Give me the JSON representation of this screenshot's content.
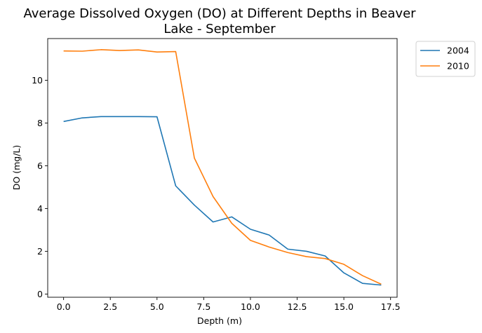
{
  "chart_data": {
    "type": "line",
    "title_line1": "Average Dissolved Oxygen (DO) at Different Depths in Beaver",
    "title_line2": "Lake - September",
    "xlabel": "Depth (m)",
    "ylabel": "DO (mg/L)",
    "xlim": [
      -0.85,
      17.85
    ],
    "ylim": [
      -0.15,
      11.95
    ],
    "xticks": [
      0.0,
      2.5,
      5.0,
      7.5,
      10.0,
      12.5,
      15.0,
      17.5
    ],
    "xtick_labels": [
      "0.0",
      "2.5",
      "5.0",
      "7.5",
      "10.0",
      "12.5",
      "15.0",
      "17.5"
    ],
    "yticks": [
      0,
      2,
      4,
      6,
      8,
      10
    ],
    "ytick_labels": [
      "0",
      "2",
      "4",
      "6",
      "8",
      "10"
    ],
    "grid": false,
    "legend_position": "outside-top-right",
    "series": [
      {
        "name": "2004",
        "color": "#1f77b4",
        "x": [
          0,
          1,
          2,
          3,
          4,
          5,
          6,
          7,
          8,
          9,
          10,
          11,
          12,
          13,
          14,
          15,
          16,
          17
        ],
        "values": [
          8.07,
          8.24,
          8.3,
          8.3,
          8.3,
          8.29,
          5.06,
          4.16,
          3.37,
          3.61,
          3.03,
          2.76,
          2.1,
          2.0,
          1.78,
          0.99,
          0.5,
          0.42
        ]
      },
      {
        "name": "2010",
        "color": "#ff7f0e",
        "x": [
          0,
          1,
          2,
          3,
          4,
          5,
          6,
          7,
          8,
          9,
          10,
          11,
          12,
          13,
          14,
          15,
          16,
          17
        ],
        "values": [
          11.37,
          11.36,
          11.43,
          11.39,
          11.42,
          11.32,
          11.34,
          6.36,
          4.56,
          3.31,
          2.51,
          2.2,
          1.94,
          1.75,
          1.66,
          1.39,
          0.86,
          0.46
        ]
      }
    ]
  }
}
